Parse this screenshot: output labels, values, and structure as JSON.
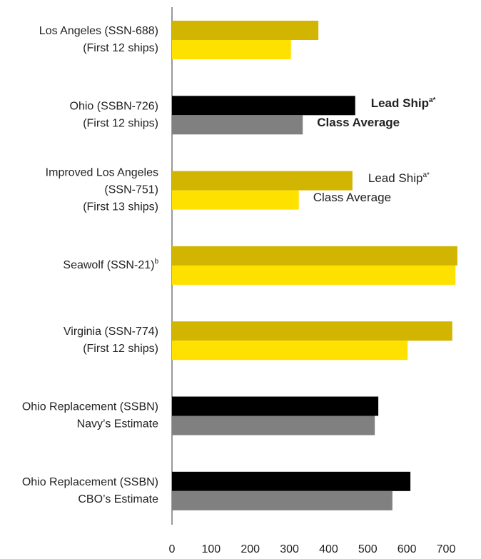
{
  "chart_data": {
    "type": "bar",
    "orientation": "horizontal",
    "categories": [
      [
        "Los Angeles (SSN-688)",
        "(First 12 ships)"
      ],
      [
        "Ohio (SSBN-726)",
        "(First 12 ships)"
      ],
      [
        "Improved Los Angeles",
        "(SSN-751)",
        "(First 13 ships)"
      ],
      [
        "Seawolf (SSN-21)"
      ],
      [
        "Virginia (SSN-774)",
        "(First 12 ships)"
      ],
      [
        "Ohio Replacement (SSBN)",
        "Navy’s Estimate"
      ],
      [
        "Ohio Replacement (SSBN)",
        "CBO’s Estimate"
      ]
    ],
    "category_superscripts": [
      null,
      null,
      null,
      "b",
      null,
      null,
      null
    ],
    "series": [
      {
        "name": "Lead Ship",
        "name_superscript": "a*",
        "values": [
          374,
          468,
          461,
          729,
          716,
          527,
          609
        ],
        "colors": [
          "#d2b500",
          "#000000",
          "#d2b500",
          "#d2b500",
          "#d2b500",
          "#000000",
          "#000000"
        ]
      },
      {
        "name": "Class Average",
        "values": [
          304,
          334,
          324,
          724,
          602,
          518,
          563
        ],
        "colors": [
          "#ffe100",
          "#808080",
          "#ffe100",
          "#ffe100",
          "#ffe100",
          "#808080",
          "#808080"
        ]
      }
    ],
    "xlim": [
      0,
      700
    ],
    "xticks": [
      0,
      100,
      200,
      300,
      400,
      500,
      600,
      700
    ]
  }
}
